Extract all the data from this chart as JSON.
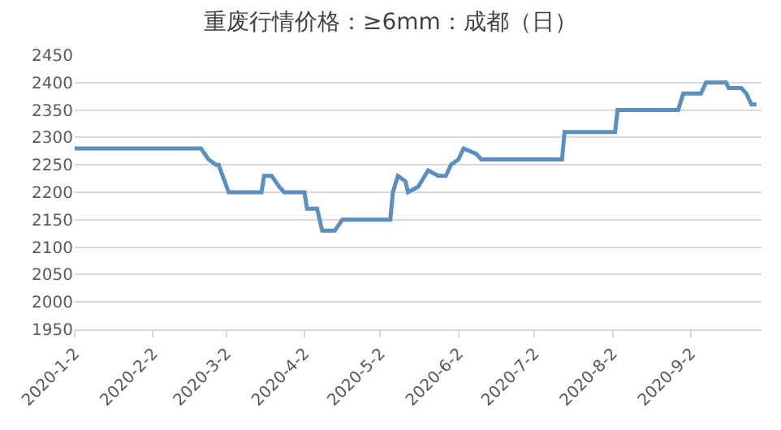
{
  "chart_data": {
    "type": "line",
    "title": "重废行情价格：≥6mm：成都（日）",
    "x": [
      "2020-01-02",
      "2020-02-21",
      "2020-02-24",
      "2020-02-27",
      "2020-02-28",
      "2020-03-03",
      "2020-03-16",
      "2020-03-17",
      "2020-03-20",
      "2020-03-23",
      "2020-03-25",
      "2020-04-02",
      "2020-04-03",
      "2020-04-07",
      "2020-04-09",
      "2020-04-14",
      "2020-04-17",
      "2020-05-06",
      "2020-05-07",
      "2020-05-09",
      "2020-05-12",
      "2020-05-13",
      "2020-05-17",
      "2020-05-21",
      "2020-05-25",
      "2020-05-28",
      "2020-05-30",
      "2020-06-02",
      "2020-06-04",
      "2020-06-09",
      "2020-06-11",
      "2020-07-13",
      "2020-07-14",
      "2020-08-03",
      "2020-08-04",
      "2020-08-28",
      "2020-08-30",
      "2020-09-06",
      "2020-09-08",
      "2020-09-16",
      "2020-09-17",
      "2020-09-22",
      "2020-09-24",
      "2020-09-26",
      "2020-09-28"
    ],
    "series": [
      {
        "color": "#5a8fc0",
        "values": [
          2280,
          2280,
          2260,
          2250,
          2250,
          2200,
          2200,
          2230,
          2230,
          2210,
          2200,
          2200,
          2170,
          2170,
          2130,
          2130,
          2150,
          2150,
          2200,
          2230,
          2220,
          2200,
          2210,
          2240,
          2230,
          2230,
          2250,
          2260,
          2280,
          2270,
          2260,
          2260,
          2310,
          2310,
          2350,
          2350,
          2380,
          2380,
          2400,
          2400,
          2390,
          2390,
          2380,
          2360,
          2360
        ]
      }
    ],
    "xlim": [
      "2020-01-02",
      "2020-09-30"
    ],
    "xticks": [
      {
        "value": "2020-01-02",
        "label": "2020-1-2"
      },
      {
        "value": "2020-02-02",
        "label": "2020-2-2"
      },
      {
        "value": "2020-03-02",
        "label": "2020-3-2"
      },
      {
        "value": "2020-04-02",
        "label": "2020-4-2"
      },
      {
        "value": "2020-05-02",
        "label": "2020-5-2"
      },
      {
        "value": "2020-06-02",
        "label": "2020-6-2"
      },
      {
        "value": "2020-07-02",
        "label": "2020-7-2"
      },
      {
        "value": "2020-08-02",
        "label": "2020-8-2"
      },
      {
        "value": "2020-09-02",
        "label": "2020-9-2"
      }
    ],
    "ylim": [
      1950,
      2450
    ],
    "yticks": [
      1950,
      2000,
      2050,
      2100,
      2150,
      2200,
      2250,
      2300,
      2350,
      2400,
      2450
    ],
    "grid": "y",
    "marker": "none",
    "line_style": "solid"
  }
}
